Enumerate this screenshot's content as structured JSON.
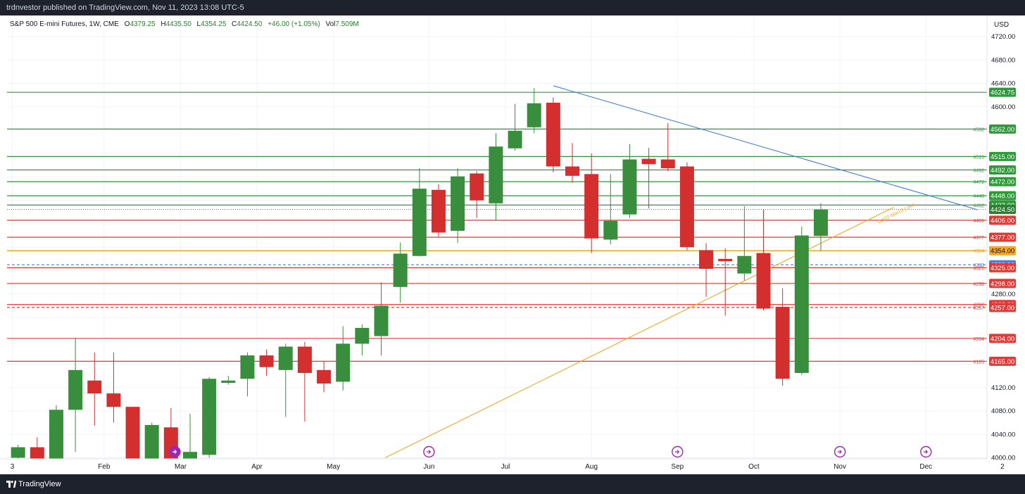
{
  "header": {
    "published_by": "trdnvestor published on TradingView.com, Nov 11, 2023 13:08 UTC-5"
  },
  "footer": {
    "brand": "TradingView"
  },
  "legend": {
    "symbol": "S&P 500 E-mini Futures, 1W, CME",
    "o_label": "O",
    "o_value": "4379.25",
    "h_label": "H",
    "h_value": "4435.50",
    "l_label": "L",
    "l_value": "4354.25",
    "c_label": "C",
    "c_value": "4424.50",
    "change": "+46.00 (+1.05%)",
    "vol_label": "Vol",
    "vol_value": "7.509M"
  },
  "currency": "USD",
  "trendline_label": "Oct22-Mar23 Lows",
  "colors": {
    "up": "#388e3c",
    "down": "#d32f2f",
    "support_green": "#2e9a3a",
    "resistance_red": "#e53935",
    "trendline_blue": "#4a7fd8",
    "trendline_orange": "#f5a623",
    "last_price": "#2e7d32",
    "marker_purple": "#9c27b0"
  },
  "chart_data": {
    "type": "candlestick",
    "interval": "1W",
    "ylim": [
      4000,
      4740
    ],
    "y_ticks": [
      4000,
      4040,
      4080,
      4120,
      4280,
      4600,
      4640,
      4680,
      4720
    ],
    "y_tick_labels": [
      "4000.00",
      "4040.00",
      "4080.00",
      "4120.00",
      "4280.00",
      "4600.00",
      "4640.00",
      "4680.00",
      "4720.00"
    ],
    "x_labels": [
      {
        "week": -0.3,
        "label": "3"
      },
      {
        "week": 4.5,
        "label": "Feb"
      },
      {
        "week": 8.5,
        "label": "Mar"
      },
      {
        "week": 12.5,
        "label": "Apr"
      },
      {
        "week": 16.5,
        "label": "May"
      },
      {
        "week": 21.5,
        "label": "Jun"
      },
      {
        "week": 25.5,
        "label": "Jul"
      },
      {
        "week": 30,
        "label": "Aug"
      },
      {
        "week": 34.5,
        "label": "Sep"
      },
      {
        "week": 38.5,
        "label": "Oct"
      },
      {
        "week": 43,
        "label": "Nov"
      },
      {
        "week": 47.5,
        "label": "Dec"
      },
      {
        "week": 51.5,
        "label": "2"
      }
    ],
    "candles": [
      {
        "o": 4000,
        "h": 4022,
        "l": 3980,
        "c": 4018
      },
      {
        "o": 4018,
        "h": 4035,
        "l": 3990,
        "c": 3995
      },
      {
        "o": 3995,
        "h": 4090,
        "l": 3985,
        "c": 4082
      },
      {
        "o": 4082,
        "h": 4205,
        "l": 4010,
        "c": 4150
      },
      {
        "o": 4132,
        "h": 4180,
        "l": 4055,
        "c": 4110
      },
      {
        "o": 4110,
        "h": 4180,
        "l": 4060,
        "c": 4087
      },
      {
        "o": 4087,
        "h": 4087,
        "l": 3960,
        "c": 3970
      },
      {
        "o": 3965,
        "h": 4060,
        "l": 3955,
        "c": 4056
      },
      {
        "o": 4052,
        "h": 4085,
        "l": 3985,
        "c": 3990
      },
      {
        "o": 3990,
        "h": 4075,
        "l": 3985,
        "c": 4010
      },
      {
        "o": 4005,
        "h": 4138,
        "l": 4000,
        "c": 4135
      },
      {
        "o": 4128,
        "h": 4140,
        "l": 4125,
        "c": 4132
      },
      {
        "o": 4135,
        "h": 4180,
        "l": 4105,
        "c": 4175
      },
      {
        "o": 4175,
        "h": 4185,
        "l": 4140,
        "c": 4155
      },
      {
        "o": 4150,
        "h": 4195,
        "l": 4070,
        "c": 4190
      },
      {
        "o": 4190,
        "h": 4198,
        "l": 4062,
        "c": 4145
      },
      {
        "o": 4150,
        "h": 4165,
        "l": 4112,
        "c": 4127
      },
      {
        "o": 4130,
        "h": 4225,
        "l": 4115,
        "c": 4195
      },
      {
        "o": 4195,
        "h": 4228,
        "l": 4175,
        "c": 4222
      },
      {
        "o": 4208,
        "h": 4300,
        "l": 4175,
        "c": 4260
      },
      {
        "o": 4292,
        "h": 4368,
        "l": 4265,
        "c": 4349
      },
      {
        "o": 4345,
        "h": 4495,
        "l": 4344,
        "c": 4460
      },
      {
        "o": 4458,
        "h": 4468,
        "l": 4378,
        "c": 4385
      },
      {
        "o": 4388,
        "h": 4495,
        "l": 4367,
        "c": 4481
      },
      {
        "o": 4486,
        "h": 4490,
        "l": 4410,
        "c": 4440
      },
      {
        "o": 4435,
        "h": 4555,
        "l": 4405,
        "c": 4532
      },
      {
        "o": 4529,
        "h": 4605,
        "l": 4525,
        "c": 4559
      },
      {
        "o": 4565,
        "h": 4632,
        "l": 4555,
        "c": 4606
      },
      {
        "o": 4607,
        "h": 4616,
        "l": 4488,
        "c": 4498
      },
      {
        "o": 4498,
        "h": 4538,
        "l": 4470,
        "c": 4482
      },
      {
        "o": 4485,
        "h": 4520,
        "l": 4350,
        "c": 4375
      },
      {
        "o": 4373,
        "h": 4485,
        "l": 4365,
        "c": 4405
      },
      {
        "o": 4416,
        "h": 4536,
        "l": 4410,
        "c": 4510
      },
      {
        "o": 4511,
        "h": 4530,
        "l": 4426,
        "c": 4502
      },
      {
        "o": 4510,
        "h": 4572,
        "l": 4490,
        "c": 4495
      },
      {
        "o": 4498,
        "h": 4505,
        "l": 4355,
        "c": 4360
      },
      {
        "o": 4355,
        "h": 4367,
        "l": 4275,
        "c": 4323
      },
      {
        "o": 4340,
        "h": 4358,
        "l": 4243,
        "c": 4336
      },
      {
        "o": 4315,
        "h": 4430,
        "l": 4303,
        "c": 4345
      },
      {
        "o": 4350,
        "h": 4425,
        "l": 4252,
        "c": 4255
      },
      {
        "o": 4258,
        "h": 4290,
        "l": 4123,
        "c": 4135
      },
      {
        "o": 4145,
        "h": 4395,
        "l": 4142,
        "c": 4380
      },
      {
        "o": 4379.25,
        "h": 4435.5,
        "l": 4354.25,
        "c": 4424.5
      }
    ],
    "horizontal_levels": [
      {
        "value": 4624.75,
        "label": "4624.75",
        "kind": "support_green",
        "small_label": ""
      },
      {
        "value": 4562,
        "label": "4562.00",
        "kind": "support_green",
        "small_label": "4562"
      },
      {
        "value": 4515,
        "label": "4515.00",
        "kind": "support_green",
        "small_label": "4515"
      },
      {
        "value": 4492,
        "label": "4492.00",
        "kind": "support_green",
        "small_label": "4492"
      },
      {
        "value": 4472,
        "label": "4472.00",
        "kind": "support_green",
        "small_label": "4472"
      },
      {
        "value": 4448,
        "label": "4448.00",
        "kind": "support_green",
        "small_label": "4448"
      },
      {
        "value": 4432,
        "label": "4432.00",
        "kind": "support_green",
        "small_label": "4432"
      },
      {
        "value": 4406,
        "label": "4406.00",
        "kind": "resistance_red",
        "small_label": "4406"
      },
      {
        "value": 4377,
        "label": "4377.00",
        "kind": "resistance_red",
        "small_label": "4377"
      },
      {
        "value": 4354,
        "label": "4354.00",
        "kind": "trendline_orange",
        "small_label": "4354"
      },
      {
        "value": 4330,
        "label": "4330.00",
        "kind": "trendline_blue",
        "small_label": "4330",
        "dashed": true
      },
      {
        "value": 4325,
        "label": "4325.00",
        "kind": "resistance_red",
        "small_label": "4325"
      },
      {
        "value": 4298,
        "label": "4298.00",
        "kind": "resistance_red",
        "small_label": "4298"
      },
      {
        "value": 4262,
        "label": "4262.00",
        "kind": "resistance_red",
        "small_label": "4262"
      },
      {
        "value": 4257,
        "label": "4257.00",
        "kind": "resistance_red",
        "small_label": "4257",
        "dashed": true
      },
      {
        "value": 4204,
        "label": "4204.00",
        "kind": "resistance_red",
        "small_label": "4204"
      },
      {
        "value": 4165,
        "label": "4165.00",
        "kind": "resistance_red",
        "small_label": "4165"
      }
    ],
    "last_price": {
      "value": 4424.5,
      "label": "4424.50"
    },
    "trendlines": [
      {
        "kind": "trendline_blue",
        "x1": 28.0,
        "y1": 4636,
        "x2": 50.2,
        "y2": 4424
      },
      {
        "kind": "trendline_orange",
        "x1": 19.2,
        "y1": 4000,
        "x2": 45.8,
        "y2": 4428
      }
    ],
    "markers_at_weeks": [
      21.5,
      34.5,
      43,
      47.5,
      8.5
    ],
    "marker_highlight_week": 43
  }
}
